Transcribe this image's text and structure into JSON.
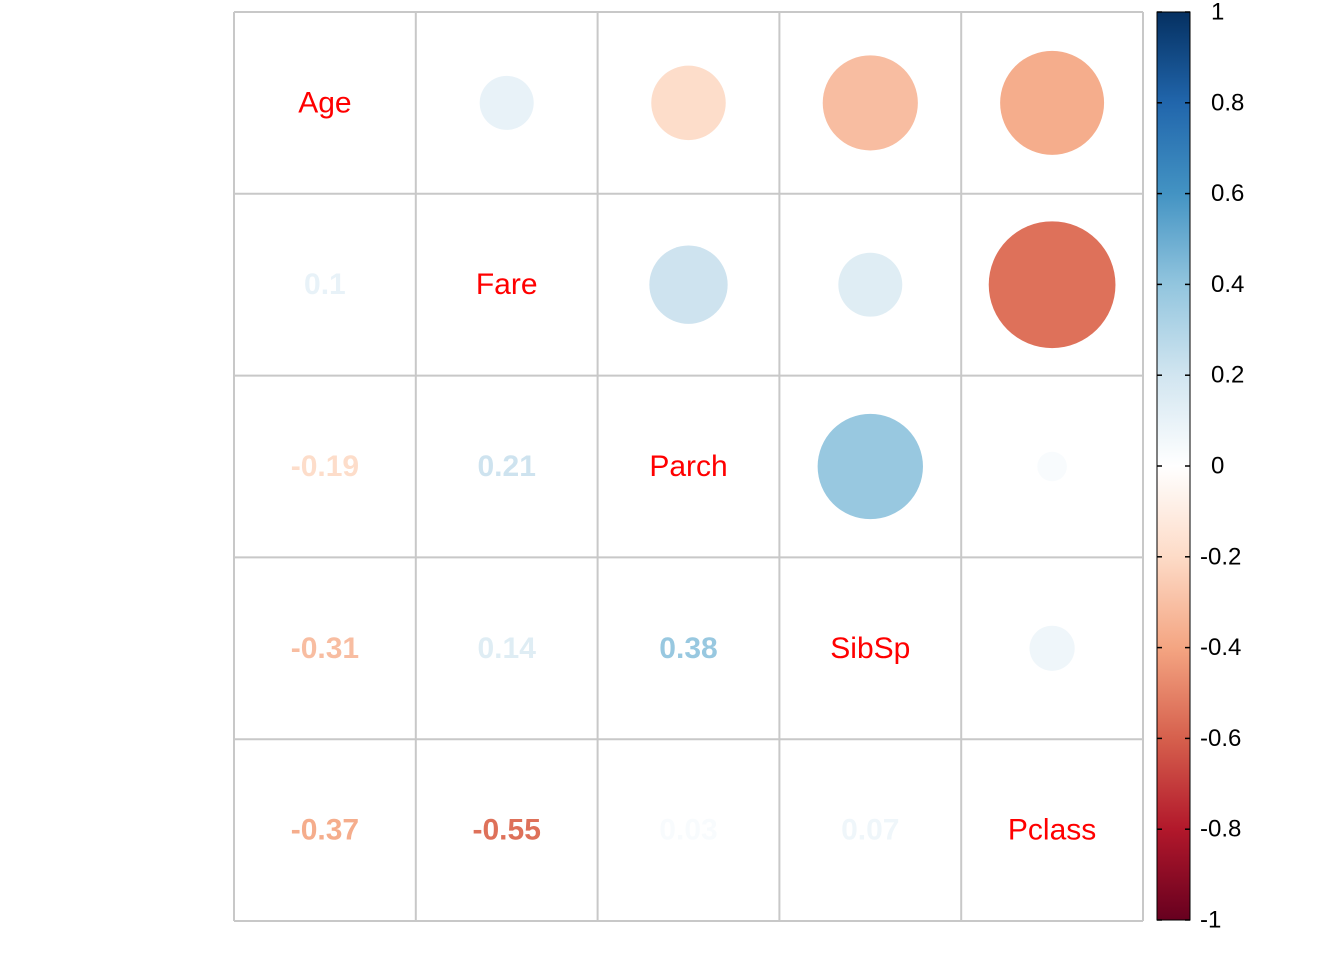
{
  "chart_data": {
    "type": "heatmap",
    "variables": [
      "Age",
      "Fare",
      "Parch",
      "SibSp",
      "Pclass"
    ],
    "matrix": [
      [
        1.0,
        0.1,
        -0.19,
        -0.31,
        -0.37
      ],
      [
        0.1,
        1.0,
        0.21,
        0.14,
        -0.55
      ],
      [
        -0.19,
        0.21,
        1.0,
        0.38,
        0.03
      ],
      [
        -0.31,
        0.14,
        0.38,
        1.0,
        0.07
      ],
      [
        -0.37,
        -0.55,
        0.03,
        0.07,
        1.0
      ]
    ],
    "value_labels": [
      [
        "",
        "",
        "",
        "",
        ""
      ],
      [
        "0.1",
        "",
        "",
        "",
        ""
      ],
      [
        "-0.19",
        "0.21",
        "",
        "",
        ""
      ],
      [
        "-0.31",
        "0.14",
        "0.38",
        "",
        ""
      ],
      [
        "-0.37",
        "-0.55",
        "0.03",
        "0.07",
        ""
      ]
    ],
    "upper_triangle": "circle",
    "lower_triangle": "number",
    "diagonal": "variable-name",
    "colorbar": {
      "range": [
        -1,
        1
      ],
      "ticks": [
        "1",
        "0.8",
        "0.6",
        "0.4",
        "0.2",
        "0",
        "-0.2",
        "-0.4",
        "-0.6",
        "-0.8",
        "-1"
      ],
      "palette": [
        "#67001f",
        "#b2182b",
        "#d6604d",
        "#f4a582",
        "#fddbc7",
        "#ffffff",
        "#d1e5f0",
        "#92c5de",
        "#4393c3",
        "#2166ac",
        "#053061"
      ]
    },
    "grid": true,
    "label_color": "#ff0000",
    "grid_color": "#c8c8c8"
  }
}
